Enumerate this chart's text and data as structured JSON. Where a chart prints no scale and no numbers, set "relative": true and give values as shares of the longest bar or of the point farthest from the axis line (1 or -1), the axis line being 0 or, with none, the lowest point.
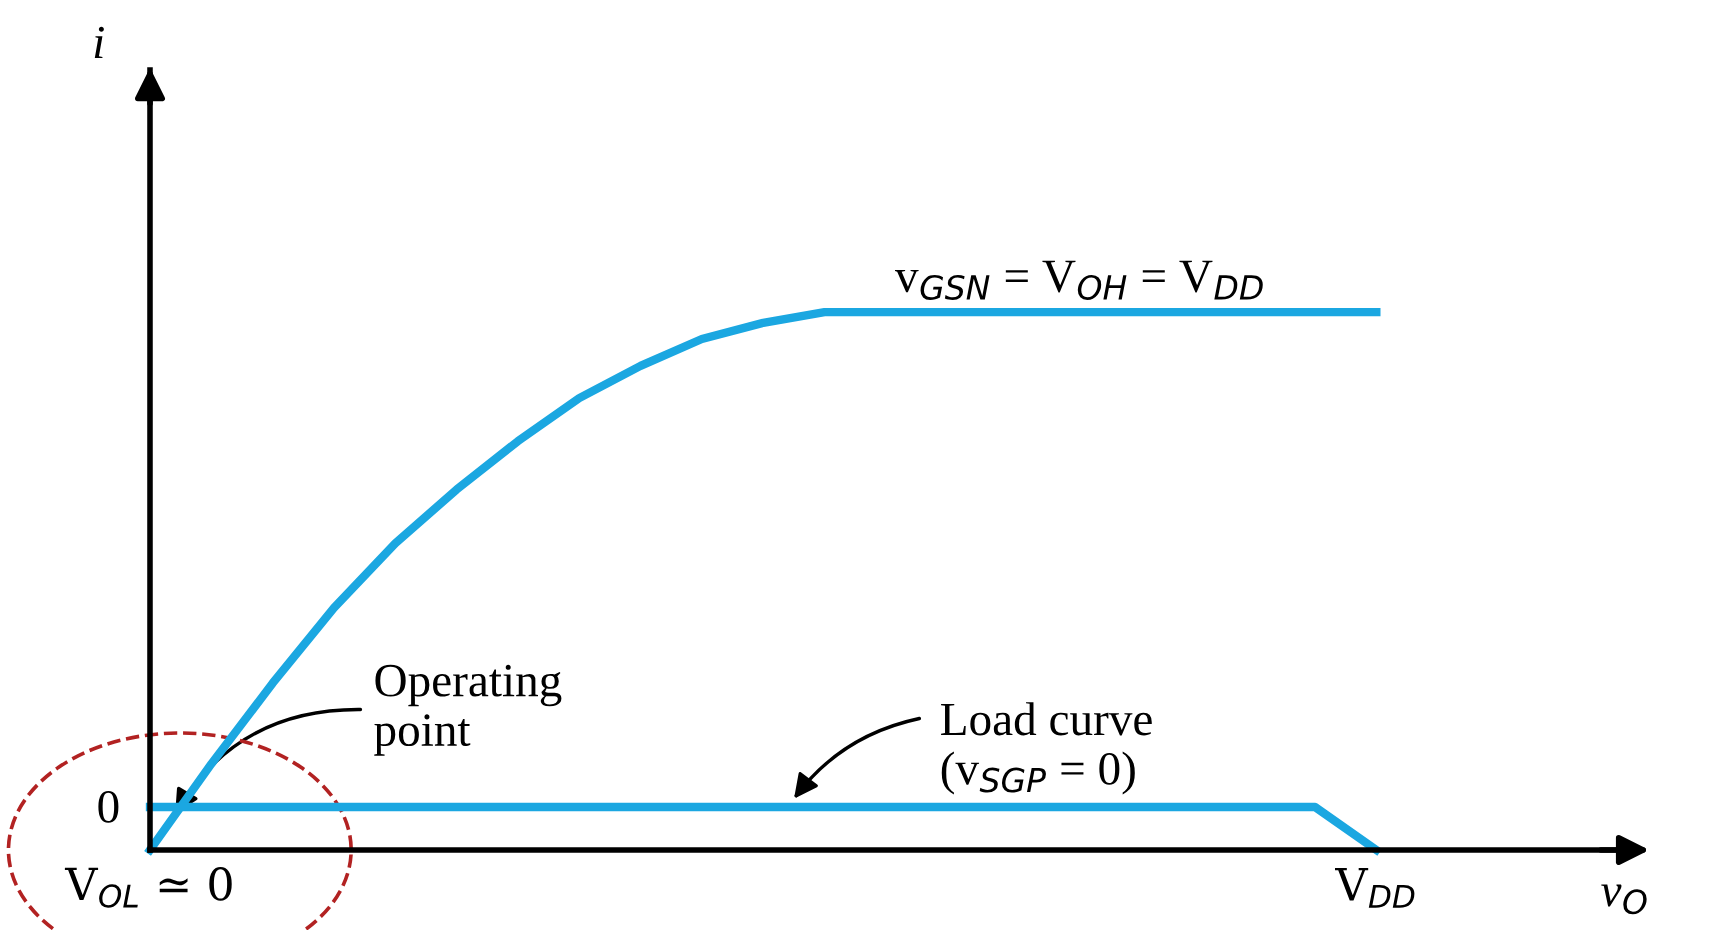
{
  "chart_data": {
    "type": "line",
    "relative": true,
    "xlabel": "v$_{O}$",
    "categories": [
      "V$_{OL}$ ≃ 0",
      null,
      null,
      null,
      null,
      null,
      null,
      null,
      null,
      null,
      null,
      null,
      null,
      null,
      null,
      null,
      null,
      null,
      null,
      null,
      "V$_{DD}$",
      null,
      null,
      null,
      null
    ],
    "series": [
      {
        "color": "#1ba7e1",
        "values": [
          0,
          0.16,
          0.31,
          0.45,
          0.57,
          0.67,
          0.76,
          0.84,
          0.9,
          0.95,
          0.98,
          1,
          1,
          1,
          1,
          1,
          1,
          1,
          1,
          1,
          1,
          null,
          null,
          null,
          null
        ]
      },
      {
        "color": "#1ba7e1",
        "values": [
          0.08,
          0.08,
          0.08,
          0.08,
          0.08,
          0.08,
          0.08,
          0.08,
          0.08,
          0.08,
          0.08,
          0.08,
          0.08,
          0.08,
          0.08,
          0.08,
          0.08,
          0.08,
          0.08,
          0.08,
          0,
          null,
          null,
          null,
          null
        ]
      }
    ],
    "annotations": [
      "v$_{GSN}$ = V$_{OH}$ = V$_{DD}$",
      "Operating\npoint",
      "Load curve\n(v$_{SGP}$ = 0)",
      "0",
      "i"
    ],
    "grid": false,
    "legend": false,
    "marker": "none",
    "line_style": "solid"
  }
}
